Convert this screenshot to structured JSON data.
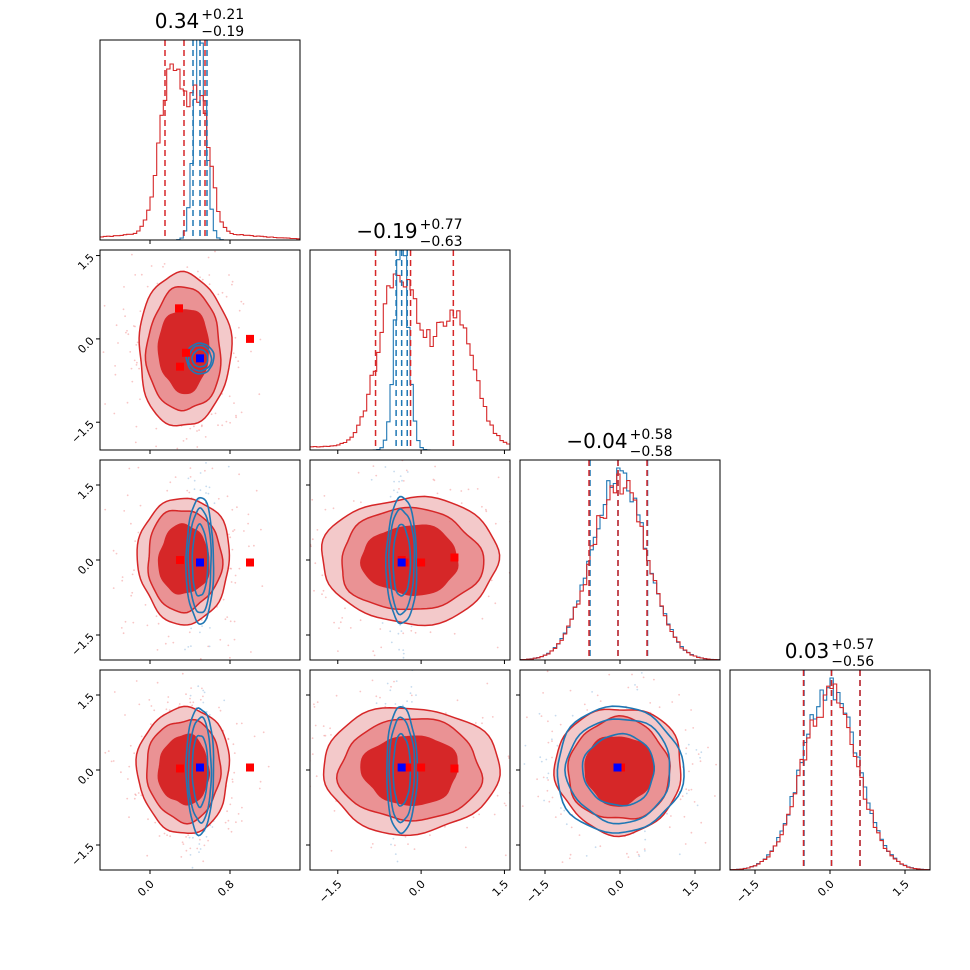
{
  "colors": {
    "red": "#d62728",
    "red_fill_outer": "#f3c9ca",
    "red_fill_mid": "#ea9294",
    "red_fill_inner": "#d62728",
    "blue": "#1f77b4",
    "marker_red": "#ff0000",
    "marker_blue": "#0000ff",
    "scatter_red": "#f08080",
    "scatter_blue": "#8fb8de"
  },
  "chart_data": {
    "type": "corner",
    "n_params": 4,
    "axis_ranges": [
      [
        -0.5,
        1.5
      ],
      [
        -2.0,
        1.6
      ],
      [
        -2.0,
        2.0
      ],
      [
        -2.0,
        2.0
      ]
    ],
    "ticks": [
      {
        "values": [
          0.0,
          0.8
        ],
        "labels": [
          "0.0",
          "0.8"
        ]
      },
      {
        "values": [
          -1.5,
          0.0,
          1.5
        ],
        "labels": [
          "−1.5",
          "0.0",
          "1.5"
        ]
      },
      {
        "values": [
          -1.5,
          0.0,
          1.5
        ],
        "labels": [
          "−1.5",
          "0.0",
          "1.5"
        ]
      },
      {
        "values": [
          -1.5,
          0.0,
          1.5
        ],
        "labels": [
          "−1.5",
          "0.0",
          "1.5"
        ]
      }
    ],
    "titles": [
      {
        "value": "0.34",
        "plus": "+0.21",
        "minus": "−0.19"
      },
      {
        "value": "−0.19",
        "plus": "+0.77",
        "minus": "−0.63"
      },
      {
        "value": "−0.04",
        "plus": "+0.58",
        "minus": "−0.58"
      },
      {
        "value": "0.03",
        "plus": "+0.57",
        "minus": "−0.56"
      }
    ],
    "diagonals": [
      {
        "red_hist": {
          "mu": 0.34,
          "sigma": 0.2,
          "modes": [
            [
              0.22,
              0.12,
              1.0
            ],
            [
              0.5,
              0.1,
              0.8
            ]
          ],
          "tail": 0.05
        },
        "blue_hist": {
          "mu": 0.5,
          "sigma": 0.06
        },
        "red_quantiles": [
          0.15,
          0.34,
          0.55
        ],
        "blue_quantiles": [
          0.43,
          0.5,
          0.57
        ]
      },
      {
        "red_hist": {
          "mu": -0.19,
          "sigma": 0.6,
          "modes": [
            [
              -0.4,
              0.35,
              1.0
            ],
            [
              0.6,
              0.35,
              0.75
            ]
          ],
          "tail": 0.03
        },
        "blue_hist": {
          "mu": -0.35,
          "sigma": 0.12
        },
        "red_quantiles": [
          -0.82,
          -0.19,
          0.58
        ],
        "blue_quantiles": [
          -0.45,
          -0.35,
          -0.25
        ]
      },
      {
        "red_hist": {
          "mu": -0.02,
          "sigma": 0.55
        },
        "blue_hist": {
          "mu": -0.02,
          "sigma": 0.55
        },
        "red_quantiles": [
          -0.62,
          -0.04,
          0.54
        ],
        "blue_quantiles": [
          -0.6,
          -0.04,
          0.55
        ]
      },
      {
        "red_hist": {
          "mu": 0.0,
          "sigma": 0.55
        },
        "blue_hist": {
          "mu": 0.0,
          "sigma": 0.55
        },
        "red_quantiles": [
          -0.53,
          0.03,
          0.6
        ],
        "blue_quantiles": [
          -0.52,
          0.03,
          0.6
        ]
      }
    ],
    "red_markers": [
      {
        "row": 1,
        "col": 0,
        "points": [
          [
            0.29,
            0.55
          ],
          [
            0.36,
            -0.25
          ],
          [
            0.3,
            -0.5
          ],
          [
            1.0,
            0.0
          ]
        ]
      },
      {
        "row": 2,
        "col": 0,
        "points": [
          [
            0.3,
            0.0
          ],
          [
            1.0,
            -0.05
          ]
        ]
      },
      {
        "row": 2,
        "col": 1,
        "points": [
          [
            -0.35,
            0.0
          ],
          [
            -0.3,
            -0.05
          ],
          [
            0.0,
            -0.05
          ],
          [
            0.6,
            0.05
          ]
        ]
      },
      {
        "row": 3,
        "col": 0,
        "points": [
          [
            0.3,
            0.03
          ],
          [
            1.0,
            0.05
          ]
        ]
      },
      {
        "row": 3,
        "col": 1,
        "points": [
          [
            -0.35,
            0.05
          ],
          [
            -0.25,
            0.05
          ],
          [
            0.0,
            0.05
          ],
          [
            0.6,
            0.03
          ]
        ]
      },
      {
        "row": 3,
        "col": 2,
        "points": [
          [
            0.02,
            0.05
          ]
        ]
      }
    ],
    "blue_markers": [
      {
        "row": 1,
        "col": 0,
        "points": [
          [
            0.5,
            -0.35
          ]
        ]
      },
      {
        "row": 2,
        "col": 0,
        "points": [
          [
            0.5,
            -0.05
          ]
        ]
      },
      {
        "row": 2,
        "col": 1,
        "points": [
          [
            -0.35,
            -0.05
          ]
        ]
      },
      {
        "row": 3,
        "col": 0,
        "points": [
          [
            0.5,
            0.05
          ]
        ]
      },
      {
        "row": 3,
        "col": 1,
        "points": [
          [
            -0.35,
            0.05
          ]
        ]
      },
      {
        "row": 3,
        "col": 2,
        "points": [
          [
            -0.05,
            0.05
          ]
        ]
      }
    ]
  }
}
